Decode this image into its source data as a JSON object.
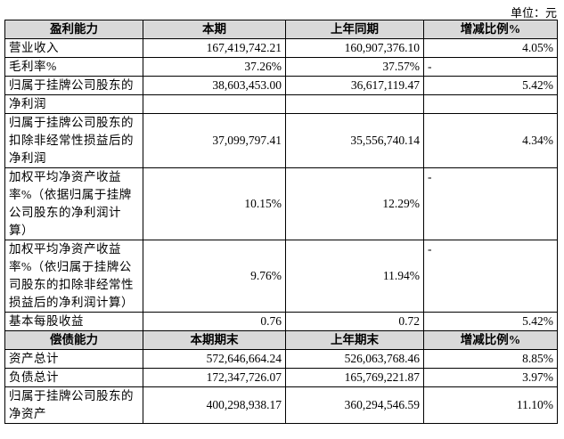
{
  "unit": "单位：元",
  "sections": [
    {
      "header": [
        "盈利能力",
        "本期",
        "上年同期",
        "增减比例%"
      ],
      "rows": [
        [
          "营业收入",
          "167,419,742.21",
          "160,907,376.10",
          "4.05%"
        ],
        [
          "毛利率%",
          "37.26%",
          "37.57%",
          "-"
        ],
        [
          "归属于挂牌公司股东的",
          "38,603,453.00",
          "36,617,119.47",
          "5.42%"
        ],
        [
          "净利润",
          null,
          null,
          null
        ],
        [
          "归属于挂牌公司股东的扣除非经常性损益后的净利润",
          "37,099,797.41",
          "35,556,740.14",
          "4.34%"
        ],
        [
          "加权平均净资产收益率%（依据归属于挂牌公司股东的净利润计算）",
          "10.15%",
          "12.29%",
          "-"
        ],
        [
          "加权平均净资产收益率%（依归属于挂牌公司股东的扣除非经常性损益后的净利润计算）",
          "9.76%",
          "11.94%",
          "-"
        ],
        [
          "基本每股收益",
          "0.76",
          "0.72",
          "5.42%"
        ]
      ]
    },
    {
      "header": [
        "偿债能力",
        "本期期末",
        "上年期末",
        "增减比例%"
      ],
      "rows": [
        [
          "资产总计",
          "572,646,664.24",
          "526,063,768.46",
          "8.85%"
        ],
        [
          "负债总计",
          "172,347,726.07",
          "165,769,221.87",
          "3.97%"
        ],
        [
          "归属于挂牌公司股东的净资产",
          "400,298,938.17",
          "360,294,546.59",
          "11.10%"
        ]
      ]
    }
  ]
}
